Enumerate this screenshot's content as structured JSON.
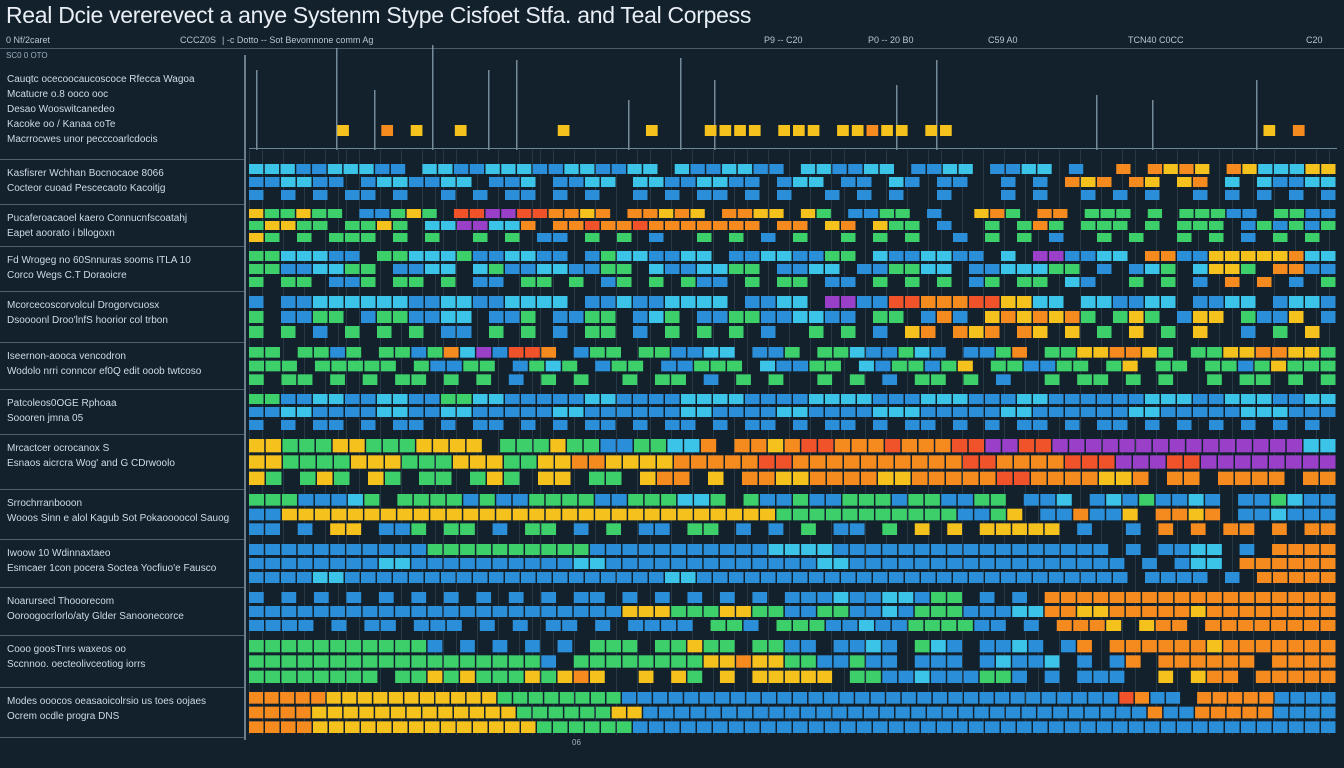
{
  "title": "Real Dcie vererevect a anye Systenm Stype Cisfoet Stfa. and Teal Corpess",
  "header_bar": [
    "0 Nf/2caret",
    "CCCZ0S",
    "| -c Dotto -- Sot Bevomnone comm Ag",
    "P9 -- C20",
    "P0 -- 20 B0",
    "C59 A0",
    "TCN40 C0CC",
    "C20"
  ],
  "sub_label": "SC0 0 OTO",
  "bottom_tick": "06",
  "colors": {
    "background": "#13212d",
    "b": "#2a8fd8",
    "c": "#3cc4e8",
    "g": "#3ccf6a",
    "y": "#f5c11c",
    "o": "#f58a1e",
    "r": "#f0522a",
    "p": "#9a3fc8",
    "t": "#24b3a0"
  },
  "chart_data": {
    "type": "heatmap",
    "title": "Real Dcie vererevect a anye Systenm Stype Cisfoet Stfa. and Teal Corpess",
    "legend": "none",
    "grid": true,
    "color_key": {
      "b": "blue",
      "c": "cyan",
      "g": "green",
      "y": "yellow",
      "o": "orange",
      "r": "red",
      "p": "purple",
      "t": "teal",
      ".": "empty"
    },
    "top_markers": "......y..o.y..y......y.....y...yyyy.yyy.yyoyy.yy.....................y.o..",
    "rows": [
      {
        "label": [
          "Cauqtc ocecoocaucoscoce Rfecca Wagoa",
          "Mcatucre o.8 ooco ooc",
          "Desao Wooswitcanedeo",
          "Kacoke oo / Kanaa coTe",
          "Macrrocwes unor pecccoarlcdocis"
        ],
        "lanes": []
      },
      {
        "label": [
          "Kasfisrer Wchhan Bocnocaoe 8066",
          "Cocteor cuoad Pescecaoto Kacoitjg"
        ],
        "lanes": [
          "cccbbcccbb.ccbbcccbbccbbcc.cbbccbb.ccbbcc.bbcc.bbcc.b..o.oyoy.oycccyy",
          "bbccbb.bccbbcc.bbc.bbcc.ccbbccbb.bcc.bb.cb.bb..b.b.oyo.oy.yo.c.cbbcc",
          "b.b.b.bb.b..b.b.bb.b.b..b.b.bb.b.b..b.b.b..b...b.b..b.b.b..b.b.b.b.b"
        ]
      },
      {
        "label": [
          "Pucaferoacaoel kaero Connucnfscoatahj",
          "Eapet aoorato i bllogoxn"
        ],
        "lanes": [
          "yggygg.bbgyg.rrpprrooyo.ooyoy.ooyy.yg.bbgg.b..yog.oo.ggg.g.gggbb.ggbb",
          "gyygg.ggyg.ccppcco.ooroorooooooo.oo.yo.ygg.b..g.gog.ggg.g.ggg.bgbgbg",
          "yg.g.ggg.g.g..g.g.bb.g.g.b..g.g.b.g..g.g.g..b.g.g.b..g.g..g.g.b.g.g."
        ]
      },
      {
        "label": [
          "Fd Wrogeg no 60Snnuras sooms ITLA 10",
          "Corco Wegs C.T Doraoicre"
        ],
        "lanes": [
          "ggcccbb.ggcccgbbccbb.bgccbbcc.bbccbbgg.cbbccbb.c.ppbbcc.oobbyyyyyocc",
          "ggbbccgg.bbcc.cgbbccbbgg.cbbccgg.bbcc.bbggcc.bbcccgg.b.bcg.cyyg.oobb",
          "g.gg.bbg.gg.g.bb.gg.g.bg.g.gbb.g.gg.bb.g.g.g.bg.gg.cb..g.g.b.o.o.b.g"
        ]
      },
      {
        "label": [
          "Mcorcecoscorvolcul Drogorvcuosx",
          "Dsoooonl Droo'lnfS hoorior col trbon"
        ],
        "lanes": [
          "b.bbccccccbbccbbcccc.bbcbbcccc.bbcc.ppbbrrooorryycc.ccbbcc.bbcc.bccb",
          "g.bbgg.bggbbcc.bbg.bbgg.bcg.bbggbbccbb.gg.bob.yoyoyog.gyg.byy.gbby.b",
          "g.g.b.g.g.g.bb.g.g.b.gg.b.g.g.g.b..g.g.b.yo.oyo.oy.y.g.y.g.y..b.g.y."
        ]
      },
      {
        "label": [
          "Iseernon-aooca vencodron",
          "Wodolo nrri conncor ef0Q edit ooob  twtcoso"
        ],
        "lanes": [
          "gg.ggbg.ggbgocpbrro.bgg.ggbbcc.bbg.ggcbbgcb.bbgo.ggyyooyg.ggyyooyyg",
          "ggg.ggggg.gbbgg.bgcg.bgg.bbggg.cbbgg.cbggbgy.ggbbgg.gy.gg.ggbgyggg",
          "g.gg.g.g.gg.g.g.b.g.g..g.gg.b.g.g..g.g.b.gg.g.b..g.gg.g.g..g.gg.g.g"
        ]
      },
      {
        "label": [
          "Patcoleos0OGE Rphoaa",
          "Soooren            jmna 05"
        ],
        "lanes": [
          "ggbbccbbccbbggccbbbbbccbbbbccccbbbbccccbbbcccbbbccbbbbbbcccbbcccbbcc",
          "bbccbbbbccbbccbbbbbccbbbbbbccbbbbccbbbbcccbbbbbccbbbbbbccbbbbbcccbbb",
          "b.b.bb.b.bb.b.bb.b.b.bb.b.bb.b.bb.b.bb.b.bb.b.b.bb.b.bb.b.b.b.b.b.b."
        ]
      },
      {
        "label": [
          "Mrcactcer ocrocanox S",
          "Esnaos aicrcra Wog' and G CDrwoolo"
        ],
        "lanes": [
          "yygggyygggyyyy.gggyggbbggcco.ooyorrooorooorrpprrpppppppppppppppcc",
          "yyggggyyygggyyyggyyooyyyyooooorroooooooooorroooorrrppprrpppppppp",
          "yg.gyg.yg.gg.gyg.yy.gg.yoo.y.ooyyooooyyooooorrooooyyo.oo.oooo.oo"
        ]
      },
      {
        "label": [
          "Srrochrranbooon",
          "Wooos Sinn e alol Kagub Sot Pokaoooocol Sauog"
        ],
        "lanes": [
          "gggbbbcg.ggggbgbbggggbbgggccg.gbbgbbgggbggbbgg.bbc.bcbgbbcb.bbgcbb",
          "bbyyyyyyyyyyyyyyyyyyyyyyyyyyyyyygggggggggggbbgy.bbobby.ooyo.bbcbbb",
          "bb.b.yy.bbg.gg.b.gg.b.g.bb.gg.b.b.g.bb.g.y.y.yyyyy.b..b.o.o.oo.o.oo"
        ]
      },
      {
        "label": [
          "Iwoow 10 Wdinnaxtaeo",
          "Esmcaer 1con pocera Soctea Yocfiuo'e Fausco"
        ],
        "lanes": [
          "bbbbbbbbbbbggggggggggbbbbbbbbbbbccccbbbbbbbbbbbbbbbbb.b.bbcc.b.oooo",
          "bbbbbbbbccbbbbbbbbbbccbbbbbbbbbbbbbccbbbbbbbbbbbbbbbbb.b.bcc.oooooo",
          "bbbbccbbbbbbbbbbbbbbbbbbbbccbbbbbbbbbbbbbbbbbbbbbbbbbbb.bbbb.b.ooooo"
        ]
      },
      {
        "label": [
          "Noarursecl Thooorecom",
          "Ooroogocrlorlo/aty Glder Sanoonecorce"
        ],
        "lanes": [
          "b.b.b.b.b.b.b.b.b.b.bb.b.b.b.b.b.bbbcbbccbgg.b.b.oooooooooooooooooo",
          "bbbbbbbbbbbbbbbbbbbbbbbyyygggyyggbbggbbcbgggbbbccooyyoooooyoooooooo",
          "bbbb.b.bb.bbb.b.b.bb.b.bbbb.ggb.gggbbcbbggggbb.b.oooy.yoo.oooooooo"
        ]
      },
      {
        "label": [
          "Cooo goosTnrs waxeos oo",
          "Sccnnoo. oecteolivceotiog iorrs"
        ],
        "lanes": [
          "gggggggggggb.b.b.b.b.ggg.ggygg.ggbb.bbcb.gcb.bbcb.bo.ooooooyooooooo",
          "ggggggggggggggggggb.ggggggggyyoyyggbbgbb.bbb.bcbbc.b.bo.oooooo.oooo",
          "gggggggg.ggygygggygyoy..y.yg.y.yyyyy.ggbbcbbbggb.b.bbb..y.yoo.ooooo"
        ]
      },
      {
        "label": [
          "Modes ooocos oeasaoicolrsio us toes oojaes",
          "Ocrem ocdle progra DNS"
        ],
        "lanes": [
          "oooooyyyyyyyyyyyggggggggbbbbbbbbbbbbbbbbbbbbbbbbbbbbbbbbrobb.ooooobbbb",
          "ooooyyyyyyyyyyyyyggggggyybbbbbbbbbbbbbbbbbbbbbbbbbbbbbbbbobbooooobbbb",
          "ooooyyyyyyyyyyyyyyggggggbbbbbbbbbbbbbbbbbbbbbbbbbbbbbbbbbbbbbbbbbbbb"
        ]
      }
    ]
  }
}
